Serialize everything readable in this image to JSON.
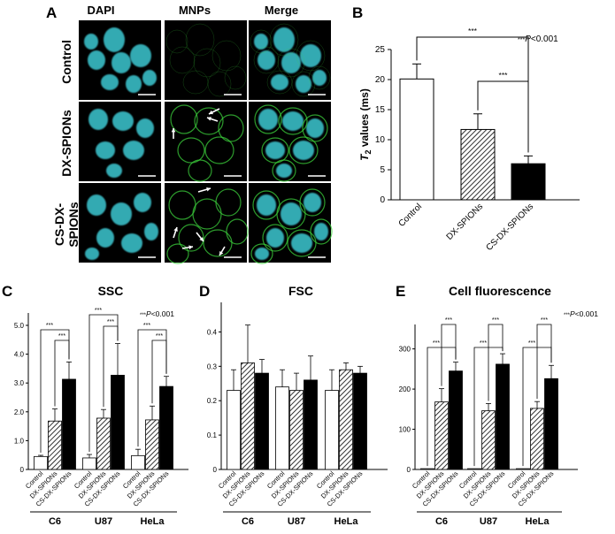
{
  "panel_labels": {
    "a": "A",
    "b": "B",
    "c": "C",
    "d": "D",
    "e": "E"
  },
  "microscopy": {
    "columns": [
      "DAPI",
      "MNPs",
      "Merge"
    ],
    "rows": [
      "Control",
      "DX-SPIONs",
      "CS-DX-\nSPIONs"
    ]
  },
  "colors": {
    "nucleus": "#3cc8d2",
    "mnp_signal": "#3cd23c",
    "bar_fill_black": "#000000",
    "bar_fill_white": "#ffffff"
  },
  "chart_data": [
    {
      "id": "B",
      "type": "bar",
      "categories": [
        "Control",
        "DX-SPIONs",
        "CS-DX-SPIONs"
      ],
      "values": [
        20.1,
        11.7,
        6.0
      ],
      "errors": [
        2.5,
        2.6,
        1.3
      ],
      "patterns": [
        "white",
        "hatch",
        "black"
      ],
      "ylabel_main": "T",
      "ylabel_sub": "2",
      "ylabel_rest": " values (ms)",
      "ylim": [
        0,
        25
      ],
      "yticks": [
        "0",
        "5",
        "10",
        "15",
        "20",
        "25"
      ],
      "significance": [
        {
          "from": 0,
          "to": 2,
          "label": "***"
        },
        {
          "from": 1,
          "to": 2,
          "label": "***"
        }
      ],
      "note_stars": "***",
      "note_p": "P",
      "note_rest": "<0.001"
    },
    {
      "id": "C",
      "type": "bar",
      "title": "SSC",
      "groups": [
        "C6",
        "U87",
        "HeLa"
      ],
      "categories": [
        "Control",
        "DX-SPIONs",
        "CS-DX-SPIONs"
      ],
      "series": [
        {
          "name": "Control",
          "values": [
            0.45,
            0.4,
            0.48
          ],
          "errors": [
            0.04,
            0.12,
            0.22
          ]
        },
        {
          "name": "DX-SPIONs",
          "values": [
            1.68,
            1.78,
            1.72
          ],
          "errors": [
            0.42,
            0.3,
            0.48
          ]
        },
        {
          "name": "CS-DX-SPIONs",
          "values": [
            3.13,
            3.27,
            2.88
          ],
          "errors": [
            0.6,
            1.1,
            0.35
          ]
        }
      ],
      "ylim": [
        0,
        5
      ],
      "yticks": [
        "0",
        "1.0",
        "2.0",
        "3.0",
        "4.0",
        "5.0"
      ],
      "note_stars": "***",
      "note_p": "P",
      "note_rest": "<0.001"
    },
    {
      "id": "D",
      "type": "bar",
      "title": "FSC",
      "groups": [
        "C6",
        "U87",
        "HeLa"
      ],
      "categories": [
        "Control",
        "DX-SPIONs",
        "CS-DX-SPIONs"
      ],
      "series": [
        {
          "name": "Control",
          "values": [
            0.23,
            0.24,
            0.23
          ],
          "errors": [
            0.06,
            0.05,
            0.06
          ]
        },
        {
          "name": "DX-SPIONs",
          "values": [
            0.31,
            0.23,
            0.29
          ],
          "errors": [
            0.11,
            0.05,
            0.02
          ]
        },
        {
          "name": "CS-DX-SPIONs",
          "values": [
            0.28,
            0.26,
            0.28
          ],
          "errors": [
            0.04,
            0.07,
            0.02
          ]
        }
      ],
      "ylim": [
        0,
        0.45
      ],
      "yticks": [
        "0",
        "0.1",
        "0.2",
        "0.3",
        "0.4"
      ]
    },
    {
      "id": "E",
      "type": "bar",
      "title": "Cell fluorescence",
      "groups": [
        "C6",
        "U87",
        "HeLa"
      ],
      "categories": [
        "Control",
        "DX-SPIONs",
        "CS-DX-SPIONs"
      ],
      "series": [
        {
          "name": "Control",
          "values": [
            2,
            2,
            2
          ],
          "errors": [
            0,
            0,
            0
          ]
        },
        {
          "name": "DX-SPIONs",
          "values": [
            168,
            146,
            152
          ],
          "errors": [
            33,
            18,
            17
          ]
        },
        {
          "name": "CS-DX-SPIONs",
          "values": [
            245,
            262,
            226
          ],
          "errors": [
            22,
            26,
            33
          ]
        }
      ],
      "ylim": [
        0,
        330
      ],
      "yticks": [
        "0",
        "100",
        "200",
        "300"
      ],
      "note_stars": "***",
      "note_p": "P",
      "note_rest": "<0.001"
    }
  ]
}
